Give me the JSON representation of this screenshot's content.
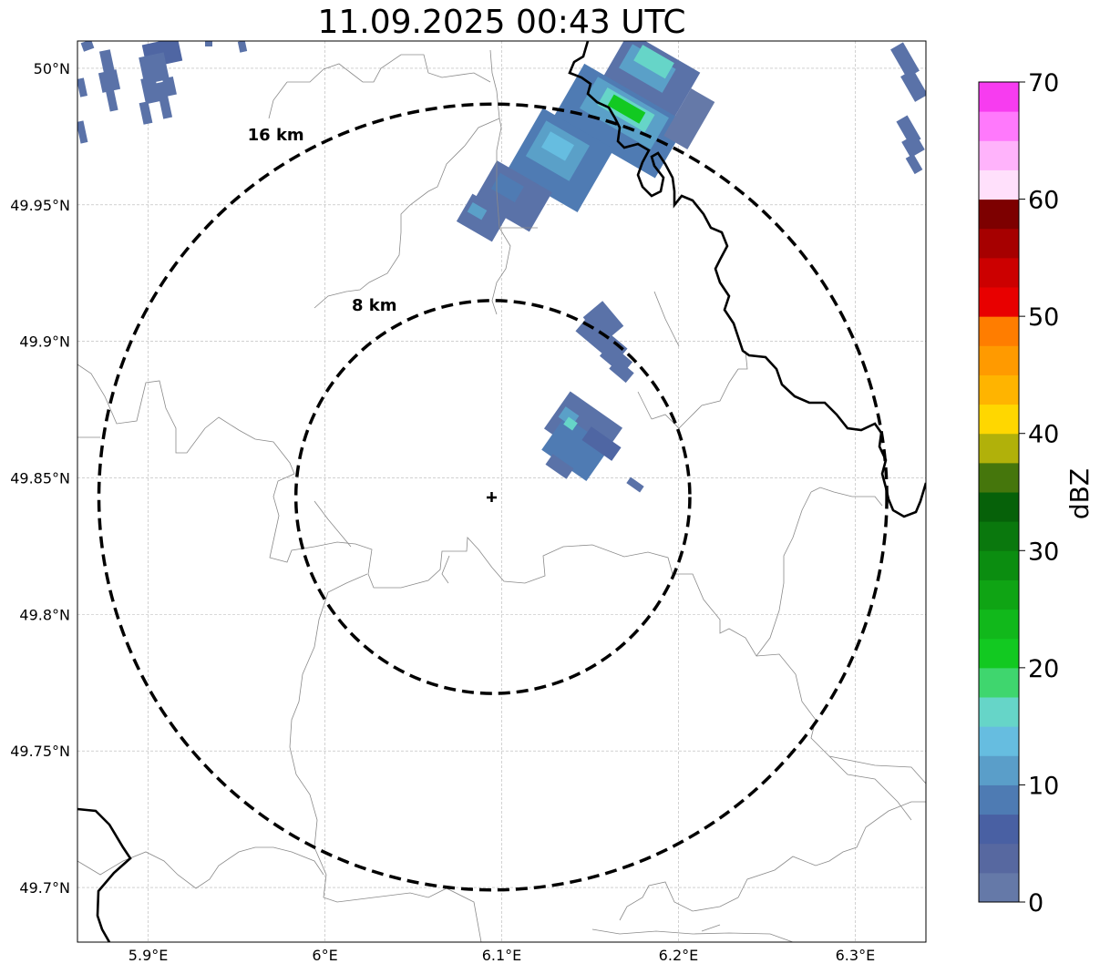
{
  "title": "11.09.2025 00:43 UTC",
  "map": {
    "extent": {
      "lon": [
        5.86,
        6.34
      ],
      "lat": [
        49.68,
        50.01
      ]
    },
    "center": {
      "lon": 6.095,
      "lat": 49.843
    },
    "gridlines": true,
    "x_ticks": [
      {
        "lon": 5.9,
        "label": "5.9°E"
      },
      {
        "lon": 6.0,
        "label": "6°E"
      },
      {
        "lon": 6.1,
        "label": "6.1°E"
      },
      {
        "lon": 6.2,
        "label": "6.2°E"
      },
      {
        "lon": 6.3,
        "label": "6.3°E"
      }
    ],
    "y_ticks": [
      {
        "lat": 50.0,
        "label": "50°N"
      },
      {
        "lat": 49.95,
        "label": "49.95°N"
      },
      {
        "lat": 49.9,
        "label": "49.9°N"
      },
      {
        "lat": 49.85,
        "label": "49.85°N"
      },
      {
        "lat": 49.8,
        "label": "49.8°N"
      },
      {
        "lat": 49.75,
        "label": "49.75°N"
      },
      {
        "lat": 49.7,
        "label": "49.7°N"
      }
    ],
    "range_rings": [
      {
        "radius_km": 8,
        "label": "8 km"
      },
      {
        "radius_km": 16,
        "label": "16 km"
      }
    ]
  },
  "colorbar": {
    "title": "dBZ",
    "min": 0,
    "max": 70,
    "step": 2.5,
    "ticks": [
      "0",
      "10",
      "20",
      "30",
      "40",
      "50",
      "60",
      "70"
    ],
    "colors": [
      "#6579a8",
      "#5768a0",
      "#4960a3",
      "#4e7bb3",
      "#5a9ec9",
      "#66bde0",
      "#66d5c8",
      "#3fd66e",
      "#12c921",
      "#11b81b",
      "#0fa414",
      "#0b8d10",
      "#0a780d",
      "#066109",
      "#45760c",
      "#b1b10a",
      "#ffd700",
      "#ffb400",
      "#ff9a00",
      "#ff7d00",
      "#e80000",
      "#cc0000",
      "#a60000",
      "#7d0000",
      "#ffe0fb",
      "#ffb3fb",
      "#ff79fc",
      "#f73cf0"
    ]
  }
}
